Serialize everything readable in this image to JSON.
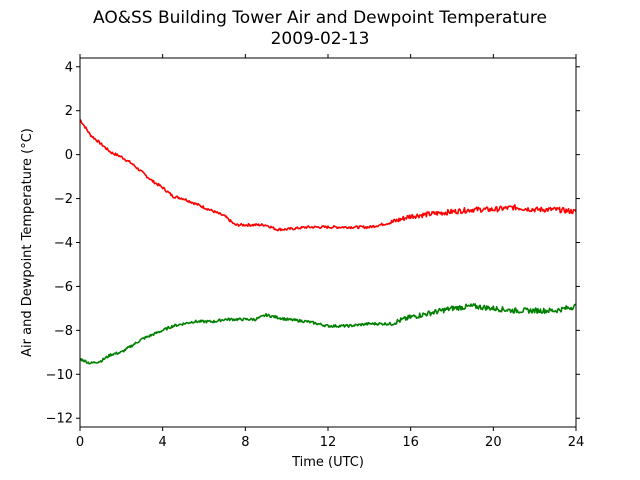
{
  "chart_data": {
    "type": "line",
    "title": "AO&SS Building Tower Air and Dewpoint Temperature",
    "subtitle": "2009-02-13",
    "xlabel": "Time (UTC)",
    "ylabel": "Air and Dewpoint Temperature (°C)",
    "xlim": [
      0,
      24
    ],
    "ylim": [
      -12.4,
      4.4
    ],
    "xticks": [
      0,
      4,
      8,
      12,
      16,
      20,
      24
    ],
    "yticks": [
      -12,
      -10,
      -8,
      -6,
      -4,
      -2,
      0,
      2,
      4
    ],
    "grid": false,
    "legend": "none",
    "series": [
      {
        "color": "#ff0000",
        "x": [
          0,
          0.5,
          1,
          1.5,
          2,
          2.5,
          3,
          3.5,
          4,
          4.5,
          5,
          5.5,
          6,
          6.5,
          7,
          7.5,
          8,
          8.5,
          9,
          9.5,
          10,
          11,
          12,
          13,
          14,
          14.5,
          15,
          16,
          17,
          18,
          19,
          20,
          21,
          22,
          23,
          24
        ],
        "y": [
          1.6,
          0.9,
          0.5,
          0.1,
          -0.1,
          -0.4,
          -0.8,
          -1.2,
          -1.5,
          -1.9,
          -2.0,
          -2.2,
          -2.4,
          -2.6,
          -2.8,
          -3.2,
          -3.2,
          -3.2,
          -3.2,
          -3.4,
          -3.4,
          -3.3,
          -3.3,
          -3.3,
          -3.3,
          -3.2,
          -3.1,
          -2.8,
          -2.7,
          -2.6,
          -2.5,
          -2.5,
          -2.4,
          -2.5,
          -2.5,
          -2.6
        ]
      },
      {
        "color": "#008000",
        "x": [
          0,
          0.5,
          1,
          1.5,
          2,
          2.5,
          3,
          3.5,
          4,
          4.5,
          5,
          5.5,
          6,
          6.5,
          7,
          7.5,
          8,
          8.5,
          9,
          9.5,
          10,
          11,
          12,
          13,
          14,
          15,
          16,
          17,
          18,
          19,
          20,
          21,
          22,
          23,
          24
        ],
        "y": [
          -9.3,
          -9.5,
          -9.4,
          -9.1,
          -9.0,
          -8.7,
          -8.4,
          -8.2,
          -8.0,
          -7.8,
          -7.7,
          -7.6,
          -7.6,
          -7.6,
          -7.5,
          -7.5,
          -7.5,
          -7.5,
          -7.3,
          -7.4,
          -7.5,
          -7.6,
          -7.8,
          -7.8,
          -7.7,
          -7.7,
          -7.4,
          -7.2,
          -7.0,
          -6.9,
          -7.0,
          -7.1,
          -7.1,
          -7.1,
          -6.9
        ]
      }
    ]
  }
}
